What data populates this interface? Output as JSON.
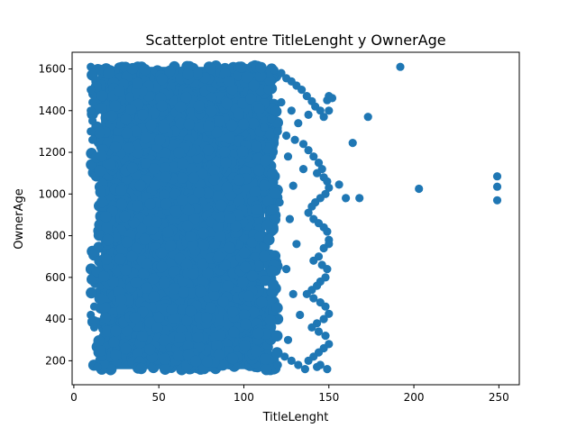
{
  "chart_data": {
    "type": "scatter",
    "title": "Scatterplot entre TitleLenght y OwnerAge",
    "xlabel": "TitleLenght",
    "ylabel": "OwnerAge",
    "xlim": [
      -1,
      262
    ],
    "ylim": [
      85,
      1680
    ],
    "xticks": [
      0,
      50,
      100,
      150,
      200,
      250
    ],
    "yticks": [
      200,
      400,
      600,
      800,
      1000,
      1200,
      1400,
      1600
    ],
    "xtick_labels": [
      "0",
      "50",
      "100",
      "150",
      "200",
      "250"
    ],
    "ytick_labels": [
      "200",
      "400",
      "600",
      "800",
      "1000",
      "1200",
      "1400",
      "1600"
    ],
    "grid": false,
    "marker_color": "#1f77b4",
    "dense_region": {
      "x_range": [
        10,
        120
      ],
      "y_range": [
        155,
        1615
      ]
    },
    "series": [
      {
        "points": [
          [
            10,
            1610
          ],
          [
            11,
            1580
          ],
          [
            10,
            1500
          ],
          [
            11,
            1440
          ],
          [
            10,
            1400
          ],
          [
            11,
            1350
          ],
          [
            10,
            1300
          ],
          [
            11,
            1260
          ],
          [
            10,
            420
          ],
          [
            12,
            360
          ],
          [
            12,
            460
          ],
          [
            14,
            170
          ],
          [
            118,
            1595
          ],
          [
            122,
            1580
          ],
          [
            125,
            1555
          ],
          [
            128,
            1540
          ],
          [
            131,
            1520
          ],
          [
            134,
            1500
          ],
          [
            137,
            1470
          ],
          [
            140,
            1445
          ],
          [
            142,
            1420
          ],
          [
            145,
            1400
          ],
          [
            147,
            1370
          ],
          [
            149,
            1450
          ],
          [
            150,
            1470
          ],
          [
            152,
            1460
          ],
          [
            150,
            1400
          ],
          [
            120,
            1300
          ],
          [
            125,
            1280
          ],
          [
            130,
            1260
          ],
          [
            135,
            1240
          ],
          [
            138,
            1210
          ],
          [
            141,
            1180
          ],
          [
            144,
            1150
          ],
          [
            146,
            1120
          ],
          [
            143,
            1100
          ],
          [
            147,
            1080
          ],
          [
            149,
            1060
          ],
          [
            150,
            1030
          ],
          [
            148,
            1000
          ],
          [
            145,
            980
          ],
          [
            142,
            960
          ],
          [
            140,
            940
          ],
          [
            138,
            910
          ],
          [
            141,
            880
          ],
          [
            144,
            860
          ],
          [
            147,
            840
          ],
          [
            149,
            820
          ],
          [
            150,
            780
          ],
          [
            150,
            760
          ],
          [
            147,
            740
          ],
          [
            144,
            700
          ],
          [
            141,
            680
          ],
          [
            146,
            660
          ],
          [
            149,
            640
          ],
          [
            148,
            600
          ],
          [
            145,
            580
          ],
          [
            143,
            560
          ],
          [
            140,
            540
          ],
          [
            137,
            520
          ],
          [
            141,
            500
          ],
          [
            145,
            480
          ],
          [
            148,
            460
          ],
          [
            150,
            425
          ],
          [
            147,
            400
          ],
          [
            143,
            380
          ],
          [
            140,
            360
          ],
          [
            144,
            340
          ],
          [
            148,
            320
          ],
          [
            150,
            280
          ],
          [
            147,
            260
          ],
          [
            144,
            240
          ],
          [
            141,
            220
          ],
          [
            138,
            200
          ],
          [
            145,
            180
          ],
          [
            149,
            160
          ],
          [
            143,
            170
          ],
          [
            136,
            160
          ],
          [
            132,
            180
          ],
          [
            128,
            200
          ],
          [
            124,
            220
          ],
          [
            120,
            180
          ],
          [
            126,
            300
          ],
          [
            133,
            420
          ],
          [
            129,
            520
          ],
          [
            125,
            640
          ],
          [
            131,
            760
          ],
          [
            127,
            880
          ],
          [
            121,
            960
          ],
          [
            129,
            1040
          ],
          [
            135,
            1120
          ],
          [
            126,
            1180
          ],
          [
            132,
            1340
          ],
          [
            138,
            1380
          ],
          [
            122,
            1440
          ],
          [
            128,
            1400
          ],
          [
            116,
            1360
          ],
          [
            112,
            1320
          ],
          [
            114,
            1500
          ],
          [
            156,
            1045
          ],
          [
            160,
            980
          ],
          [
            168,
            980
          ],
          [
            164,
            1245
          ],
          [
            173,
            1370
          ],
          [
            192,
            1610
          ],
          [
            203,
            1025
          ],
          [
            249,
            1085
          ],
          [
            249,
            1035
          ],
          [
            249,
            970
          ]
        ]
      }
    ]
  }
}
